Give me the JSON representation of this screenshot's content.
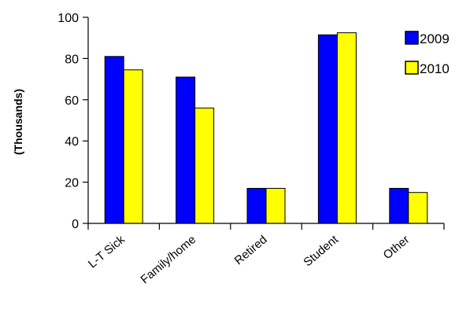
{
  "chart_data": {
    "type": "bar",
    "title": "",
    "xlabel": "",
    "ylabel": "(Thousands)",
    "ylim": [
      0,
      100
    ],
    "yticks": [
      0,
      20,
      40,
      60,
      80,
      100
    ],
    "grid": false,
    "legend_position": "top-right",
    "categories": [
      "L-T Sick",
      "Family/home",
      "Retired",
      "Student",
      "Other"
    ],
    "series": [
      {
        "name": "2009",
        "color": "#0000ff",
        "values": [
          81,
          71,
          17,
          91.5,
          17
        ]
      },
      {
        "name": "2010",
        "color": "#ffff00",
        "values": [
          74.5,
          56,
          17,
          92.5,
          15
        ]
      }
    ]
  }
}
